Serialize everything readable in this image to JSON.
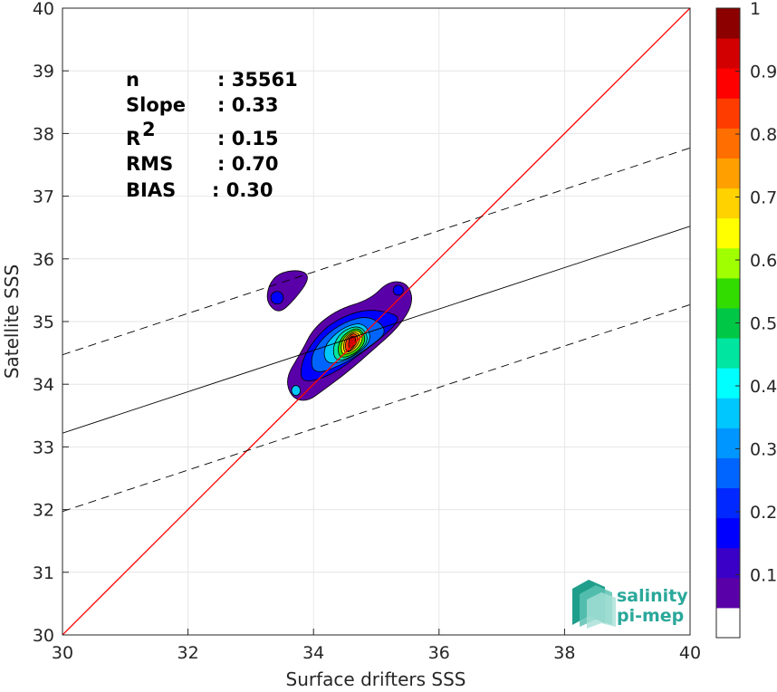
{
  "chart_data": {
    "type": "heatmap",
    "subtype": "density-contour scatter comparison",
    "xlabel": "Surface drifters SSS",
    "ylabel": "Satellite SSS",
    "xlim": [
      30,
      40
    ],
    "ylim": [
      30,
      40
    ],
    "xticks": [
      "30",
      "32",
      "34",
      "36",
      "38",
      "40"
    ],
    "yticks": [
      "30",
      "31",
      "32",
      "33",
      "34",
      "35",
      "36",
      "37",
      "38",
      "39",
      "40"
    ],
    "grid": true,
    "stats": [
      {
        "label": "n",
        "value": ": 35561"
      },
      {
        "label": "Slope",
        "value": ": 0.33"
      },
      {
        "label": "R",
        "sup": "2",
        "value": ": 0.15"
      },
      {
        "label": "RMS",
        "value": ": 0.70"
      },
      {
        "label": "BIAS",
        "value": ": 0.30"
      }
    ],
    "lines": {
      "identity": {
        "slope": 1,
        "intercept": 0,
        "color": "#ff0000"
      },
      "fit": {
        "slope": 0.33,
        "y_at_30": 33.22,
        "color": "#000000"
      },
      "fit_upper": {
        "slope": 0.33,
        "y_at_30": 34.47,
        "style": "dashed"
      },
      "fit_lower": {
        "slope": 0.33,
        "y_at_30": 31.97,
        "style": "dashed"
      }
    },
    "density_contours": [
      {
        "level": 0.05,
        "points": [
          [
            33.65,
            33.78
          ],
          [
            33.9,
            33.72
          ],
          [
            34.15,
            33.9
          ],
          [
            34.55,
            34.2
          ],
          [
            34.95,
            34.55
          ],
          [
            35.35,
            34.9
          ],
          [
            35.6,
            35.3
          ],
          [
            35.5,
            35.62
          ],
          [
            35.2,
            35.65
          ],
          [
            34.9,
            35.35
          ],
          [
            34.4,
            35.2
          ],
          [
            34.0,
            34.9
          ],
          [
            33.8,
            34.5
          ],
          [
            33.55,
            34.1
          ]
        ]
      },
      {
        "level": 0.05,
        "points": [
          [
            33.25,
            35.3
          ],
          [
            33.45,
            35.12
          ],
          [
            33.7,
            35.35
          ],
          [
            33.95,
            35.7
          ],
          [
            33.8,
            35.83
          ],
          [
            33.45,
            35.78
          ],
          [
            33.28,
            35.58
          ]
        ]
      },
      {
        "level": 0.15,
        "points": [
          [
            33.8,
            34.0
          ],
          [
            34.3,
            34.15
          ],
          [
            34.7,
            34.45
          ],
          [
            35.1,
            34.75
          ],
          [
            35.4,
            35.05
          ],
          [
            35.2,
            35.15
          ],
          [
            34.8,
            35.2
          ],
          [
            34.3,
            35.0
          ],
          [
            34.0,
            34.7
          ],
          [
            33.8,
            34.35
          ]
        ]
      },
      {
        "level": 0.25,
        "points": [
          [
            34.0,
            34.15
          ],
          [
            34.45,
            34.3
          ],
          [
            34.9,
            34.6
          ],
          [
            35.2,
            34.85
          ],
          [
            34.9,
            35.1
          ],
          [
            34.5,
            35.0
          ],
          [
            34.15,
            34.75
          ],
          [
            33.95,
            34.45
          ]
        ]
      },
      {
        "level": 0.35,
        "points": [
          [
            34.2,
            34.3
          ],
          [
            34.6,
            34.4
          ],
          [
            34.95,
            34.7
          ],
          [
            34.8,
            35.0
          ],
          [
            34.45,
            34.9
          ],
          [
            34.15,
            34.6
          ]
        ]
      },
      {
        "level": 0.45,
        "points": [
          [
            34.35,
            34.35
          ],
          [
            34.65,
            34.45
          ],
          [
            34.9,
            34.7
          ],
          [
            34.75,
            34.95
          ],
          [
            34.45,
            34.85
          ],
          [
            34.3,
            34.6
          ]
        ]
      },
      {
        "level": 0.55,
        "points": [
          [
            34.42,
            34.4
          ],
          [
            34.7,
            34.5
          ],
          [
            34.85,
            34.72
          ],
          [
            34.72,
            34.92
          ],
          [
            34.48,
            34.8
          ],
          [
            34.38,
            34.6
          ]
        ]
      },
      {
        "level": 0.65,
        "points": [
          [
            34.47,
            34.45
          ],
          [
            34.7,
            34.55
          ],
          [
            34.8,
            34.75
          ],
          [
            34.7,
            34.88
          ],
          [
            34.5,
            34.78
          ],
          [
            34.43,
            34.6
          ]
        ]
      },
      {
        "level": 0.75,
        "points": [
          [
            34.5,
            34.48
          ],
          [
            34.68,
            34.58
          ],
          [
            34.76,
            34.75
          ],
          [
            34.67,
            34.85
          ],
          [
            34.52,
            34.76
          ],
          [
            34.47,
            34.62
          ]
        ]
      },
      {
        "level": 0.85,
        "points": [
          [
            34.53,
            34.5
          ],
          [
            34.66,
            34.6
          ],
          [
            34.72,
            34.75
          ],
          [
            34.64,
            34.82
          ],
          [
            34.54,
            34.74
          ],
          [
            34.5,
            34.62
          ]
        ]
      },
      {
        "level": 0.95,
        "points": [
          [
            34.56,
            34.55
          ],
          [
            34.65,
            34.62
          ],
          [
            34.68,
            34.74
          ],
          [
            34.61,
            34.78
          ],
          [
            34.56,
            34.7
          ]
        ]
      }
    ],
    "secondary_blobs": [
      {
        "level": 0.15,
        "cx": 33.42,
        "cy": 35.38,
        "rx": 0.1,
        "ry": 0.1
      },
      {
        "level": 0.35,
        "cx": 33.72,
        "cy": 33.9,
        "rx": 0.07,
        "ry": 0.08
      },
      {
        "level": 0.15,
        "cx": 35.35,
        "cy": 35.5,
        "rx": 0.08,
        "ry": 0.08
      }
    ],
    "colorbar": {
      "ticks": [
        "0.1",
        "0.2",
        "0.3",
        "0.4",
        "0.5",
        "0.6",
        "0.7",
        "0.8",
        "0.9",
        "1"
      ],
      "colors": [
        "#ffffff",
        "#5a00a8",
        "#3a00c8",
        "#0000ff",
        "#0028ff",
        "#0064ff",
        "#0096ff",
        "#00c8ff",
        "#00ffff",
        "#00e6a0",
        "#00c846",
        "#32dc00",
        "#a0ff00",
        "#ffff00",
        "#ffd200",
        "#ffa000",
        "#ff6e00",
        "#ff3c00",
        "#ff0000",
        "#d20000",
        "#8c0000"
      ],
      "range": [
        0,
        1
      ]
    },
    "logo": {
      "line1": "salinity",
      "line2": "pi-mep"
    }
  }
}
